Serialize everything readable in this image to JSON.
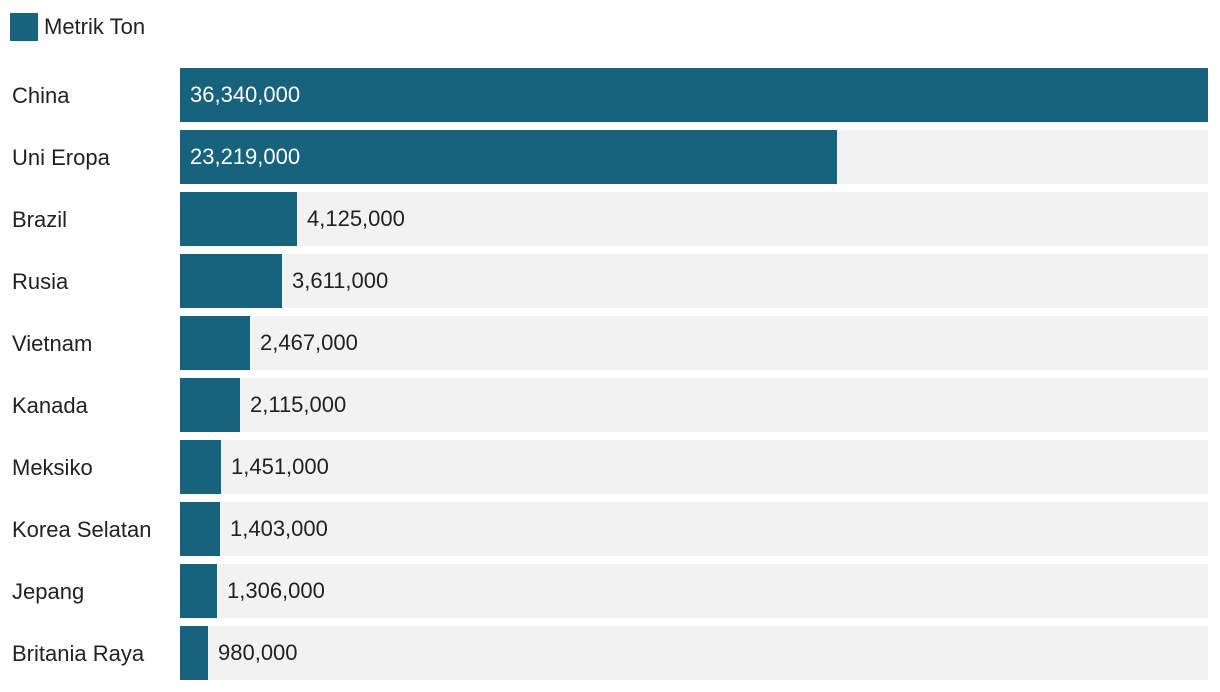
{
  "colors": {
    "bar": "#17627c",
    "track": "#f2f2f2",
    "text_outside": "#222222",
    "text_inside": "#ffffff"
  },
  "legend": {
    "label": "Metrik Ton"
  },
  "chart_data": {
    "type": "bar",
    "orientation": "horizontal",
    "categories": [
      "China",
      "Uni Eropa",
      "Brazil",
      "Rusia",
      "Vietnam",
      "Kanada",
      "Meksiko",
      "Korea Selatan",
      "Jepang",
      "Britania Raya"
    ],
    "series": [
      {
        "name": "Metrik Ton",
        "values": [
          36340000,
          23219000,
          4125000,
          3611000,
          2467000,
          2115000,
          1451000,
          1403000,
          1306000,
          980000
        ]
      }
    ],
    "data_labels": [
      "36,340,000",
      "23,219,000",
      "4,125,000",
      "3,611,000",
      "2,467,000",
      "2,115,000",
      "1,451,000",
      "1,403,000",
      "1,306,000",
      "980,000"
    ],
    "xlim": [
      0,
      36340000
    ],
    "title": "",
    "xlabel": "",
    "ylabel": "",
    "grid": false,
    "legend_position": "top-left"
  }
}
